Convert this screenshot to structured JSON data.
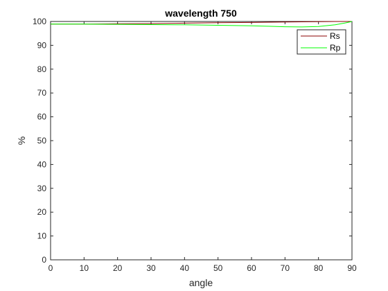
{
  "chart_data": {
    "type": "line",
    "title": "wavelength  750",
    "xlabel": "angle",
    "ylabel": "%",
    "xlim": [
      0,
      90
    ],
    "ylim": [
      0,
      100
    ],
    "xticks": [
      0,
      10,
      20,
      30,
      40,
      50,
      60,
      70,
      80,
      90
    ],
    "yticks": [
      0,
      10,
      20,
      30,
      40,
      50,
      60,
      70,
      80,
      90,
      100
    ],
    "grid": false,
    "legend_position": "top-right",
    "series": [
      {
        "name": "Rs",
        "color": "#8b0000",
        "x": [
          0,
          10,
          20,
          30,
          40,
          50,
          60,
          70,
          80,
          85,
          90
        ],
        "y": [
          98.9,
          98.9,
          99.0,
          99.1,
          99.3,
          99.5,
          99.6,
          99.8,
          99.9,
          100.0,
          100.0
        ]
      },
      {
        "name": "Rp",
        "color": "#00ff00",
        "x": [
          0,
          10,
          20,
          30,
          40,
          50,
          60,
          65,
          70,
          75,
          80,
          85,
          88,
          90
        ],
        "y": [
          98.9,
          98.9,
          98.8,
          98.7,
          98.6,
          98.4,
          98.2,
          98.0,
          97.8,
          97.7,
          97.9,
          98.6,
          99.4,
          100.0
        ]
      }
    ]
  }
}
